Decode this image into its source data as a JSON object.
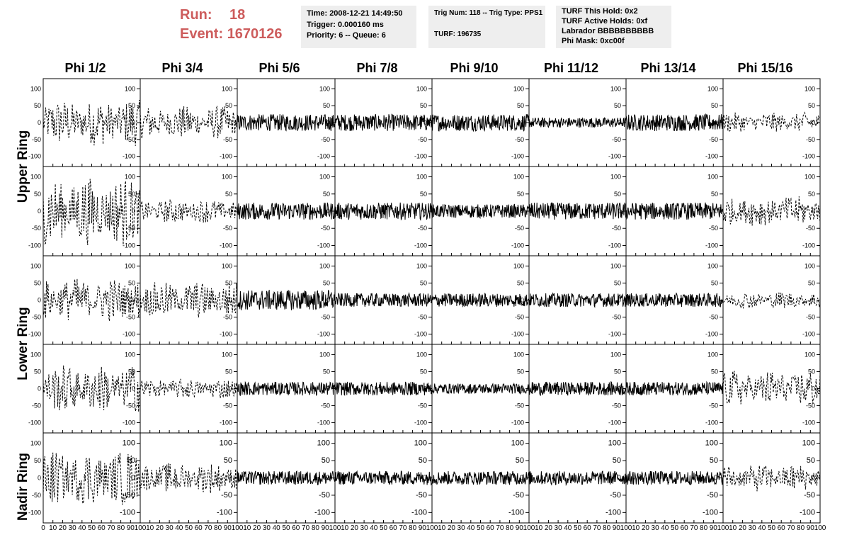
{
  "header": {
    "run_label": "Run:",
    "run_value": "18",
    "event_label": "Event:",
    "event_value": "1670126",
    "time": "Time: 2008-12-21 14:49:50",
    "trigger": "Trigger: 0.000160 ms",
    "priority": "Priority: 6 -- Queue: 6",
    "trig_num": "Trig Num: 118 -- Trig Type: PPS1",
    "turf": "TURF: 196735",
    "turf_hold": "TURF This Hold: 0x2",
    "turf_active": "TURF Active Holds: 0xf",
    "labrador": "Labrador BBBBBBBBBB",
    "phi_mask": "Phi Mask: 0xc00f"
  },
  "columns": [
    "Phi 1/2",
    "Phi 3/4",
    "Phi 5/6",
    "Phi 7/8",
    "Phi 9/10",
    "Phi 11/12",
    "Phi 13/14",
    "Phi 15/16"
  ],
  "rows": [
    "Upper Ring",
    "Lower Ring",
    "Nadir Ring"
  ],
  "colors": {
    "accent": "#cd5c5c",
    "info_bg": "#eeeeee",
    "trace": "#000000"
  },
  "chart_data": {
    "type": "line",
    "title": "",
    "xlabel": "",
    "ylabel": "",
    "xlim": [
      0,
      100
    ],
    "ylim": [
      -130,
      130
    ],
    "x_ticks": [
      "0",
      "10",
      "20",
      "30",
      "40",
      "50",
      "60",
      "70",
      "80",
      "90",
      "100"
    ],
    "y_ticks": [
      "100",
      "50",
      "0",
      "-50",
      "-100"
    ],
    "panel_rows": 5,
    "panel_cols": 8,
    "dashed_columns": [
      0,
      1,
      7
    ],
    "amplitudes": [
      [
        70,
        50,
        25,
        25,
        25,
        15,
        25,
        30
      ],
      [
        100,
        35,
        25,
        25,
        20,
        25,
        25,
        45
      ],
      [
        65,
        55,
        30,
        20,
        20,
        20,
        20,
        25
      ],
      [
        70,
        30,
        20,
        20,
        15,
        20,
        20,
        55
      ],
      [
        80,
        45,
        20,
        20,
        20,
        20,
        20,
        40
      ]
    ]
  }
}
